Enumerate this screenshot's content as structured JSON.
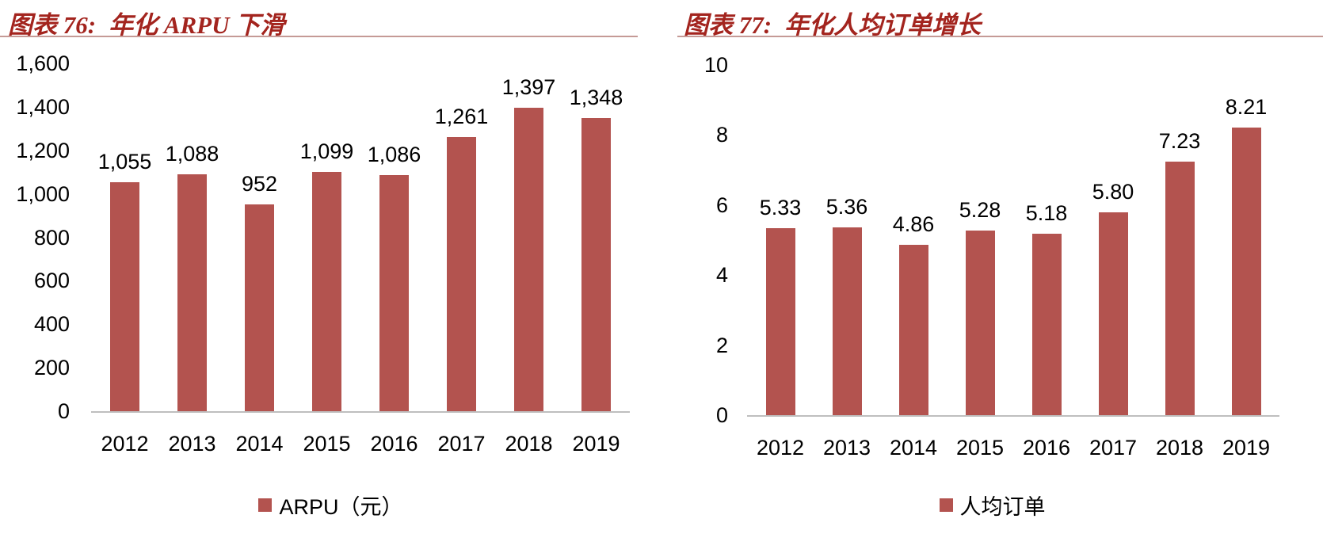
{
  "chart_data": [
    {
      "type": "bar",
      "figure_label": "图表 76:",
      "title_text": "年化 ARPU 下滑",
      "full_title": "图表 76: 年化 ARPU 下滑",
      "categories": [
        "2012",
        "2013",
        "2014",
        "2015",
        "2016",
        "2017",
        "2018",
        "2019"
      ],
      "values": [
        1055,
        1088,
        952,
        1099,
        1086,
        1261,
        1397,
        1348
      ],
      "value_labels": [
        "1,055",
        "1,088",
        "952",
        "1,099",
        "1,086",
        "1,261",
        "1,397",
        "1,348"
      ],
      "ylim": [
        0,
        1600
      ],
      "y_ticks": [
        0,
        200,
        400,
        600,
        800,
        1000,
        1200,
        1400,
        1600
      ],
      "y_tick_labels": [
        "0",
        "200",
        "400",
        "600",
        "800",
        "1,000",
        "1,200",
        "1,400",
        "1,600"
      ],
      "xlabel": "",
      "ylabel": "",
      "grid": false,
      "legend_position": "bottom",
      "legend_label": "ARPU（元）",
      "bar_color": "#b3534f"
    },
    {
      "type": "bar",
      "figure_label": "图表 77:",
      "title_text": "年化人均订单增长",
      "full_title": "图表 77: 年化人均订单增长",
      "categories": [
        "2012",
        "2013",
        "2014",
        "2015",
        "2016",
        "2017",
        "2018",
        "2019"
      ],
      "values": [
        5.33,
        5.36,
        4.86,
        5.28,
        5.18,
        5.8,
        7.23,
        8.21
      ],
      "value_labels": [
        "5.33",
        "5.36",
        "4.86",
        "5.28",
        "5.18",
        "5.80",
        "7.23",
        "8.21"
      ],
      "ylim": [
        0,
        10
      ],
      "y_ticks": [
        0,
        2,
        4,
        6,
        8,
        10
      ],
      "y_tick_labels": [
        "0",
        "2",
        "4",
        "6",
        "8",
        "10"
      ],
      "xlabel": "",
      "ylabel": "",
      "grid": false,
      "legend_position": "bottom",
      "legend_label": "人均订单",
      "bar_color": "#b3534f"
    }
  ],
  "styles": {
    "title_color": "#a3241e",
    "bar_color": "#b3534f",
    "axis_line_color": "#bfbfbf",
    "title_rule_color": "#c59a96",
    "text_color": "#000000",
    "background": "#ffffff"
  }
}
